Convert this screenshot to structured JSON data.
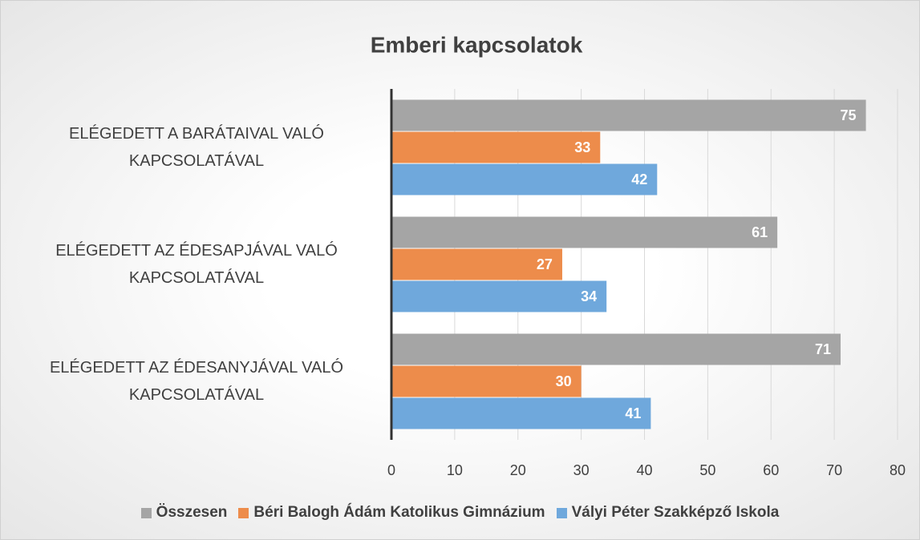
{
  "chart_data": {
    "type": "bar",
    "orientation": "horizontal",
    "title": "Emberi kapcsolatok",
    "categories": [
      "ELÉGEDETT A BARÁTAIVAL VALÓ KAPCSOLATÁVAL",
      "ELÉGEDETT AZ ÉDESAPJÁVAL VALÓ KAPCSOLATÁVAL",
      "ELÉGEDETT AZ ÉDESANYJÁVAL VALÓ KAPCSOLATÁVAL"
    ],
    "series": [
      {
        "name": "Összesen",
        "color": "#a5a5a5",
        "values": [
          75,
          61,
          71
        ]
      },
      {
        "name": "Béri Balogh Ádám Katolikus Gimnázium",
        "color": "#ed8c4b",
        "values": [
          33,
          27,
          30
        ]
      },
      {
        "name": "Vályi Péter Szakképző Iskola",
        "color": "#6fa8dc",
        "values": [
          42,
          34,
          41
        ]
      }
    ],
    "xlim": [
      0,
      80
    ],
    "xticks": [
      0,
      10,
      20,
      30,
      40,
      50,
      60,
      70,
      80
    ],
    "grid": true,
    "legend": "bottom"
  }
}
